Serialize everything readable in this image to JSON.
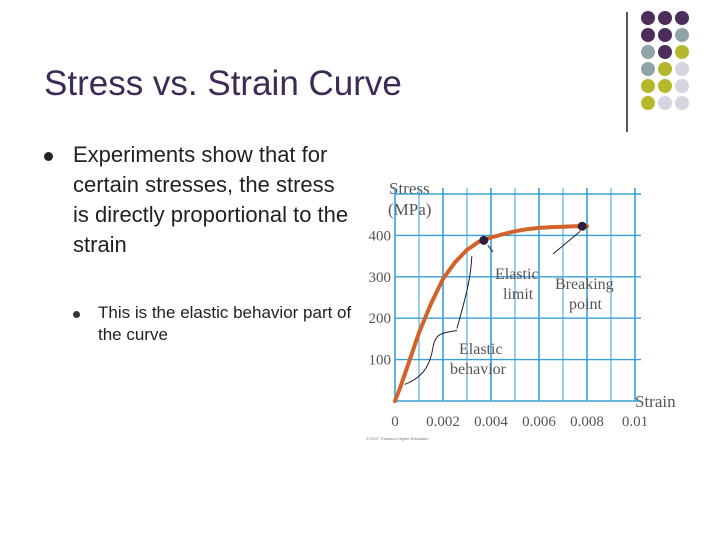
{
  "slide": {
    "title": "Stress vs. Strain Curve",
    "bullet_1": "Experiments show that for certain stresses, the stress is directly proportional to the strain",
    "bullet_1_sub": "This is the elastic behavior part of the curve"
  },
  "decor": {
    "dot_colors": [
      "#4b2e5c",
      "#8fa4a6",
      "#b5b82a",
      "#d5d5e0"
    ]
  },
  "chart_data": {
    "type": "line",
    "ylabel_line1": "Stress",
    "ylabel_line2": "(MPa)",
    "xlabel": "Strain",
    "xlim": [
      0,
      0.01
    ],
    "ylim": [
      0,
      500
    ],
    "grid": true,
    "x_ticks": [
      "0",
      "0.002",
      "0.004",
      "0.006",
      "0.008",
      "0.01"
    ],
    "y_ticks": [
      "100",
      "200",
      "300",
      "400"
    ],
    "series": [
      {
        "x": [
          0,
          0.0002,
          0.0005,
          0.001,
          0.0015,
          0.002,
          0.0025,
          0.003,
          0.0035,
          0.004,
          0.0045,
          0.005,
          0.0055,
          0.006,
          0.0065,
          0.007,
          0.0075,
          0.008
        ],
        "y": [
          0,
          30,
          80,
          165,
          235,
          295,
          335,
          365,
          385,
          395,
          403,
          410,
          415,
          418,
          420,
          421,
          422,
          422
        ],
        "color": "#d2622a"
      }
    ],
    "points": [
      {
        "name": "Elastic limit",
        "x": 0.0037,
        "y": 388
      },
      {
        "name": "Breaking point",
        "x": 0.0078,
        "y": 422
      }
    ],
    "annotations": [
      {
        "line1": "Elastic",
        "line2": "limit"
      },
      {
        "line1": "Breaking",
        "line2": "point"
      },
      {
        "line1": "Elastic",
        "line2": "behavior"
      }
    ],
    "credit": "© 2007 Thomson Higher Education"
  }
}
